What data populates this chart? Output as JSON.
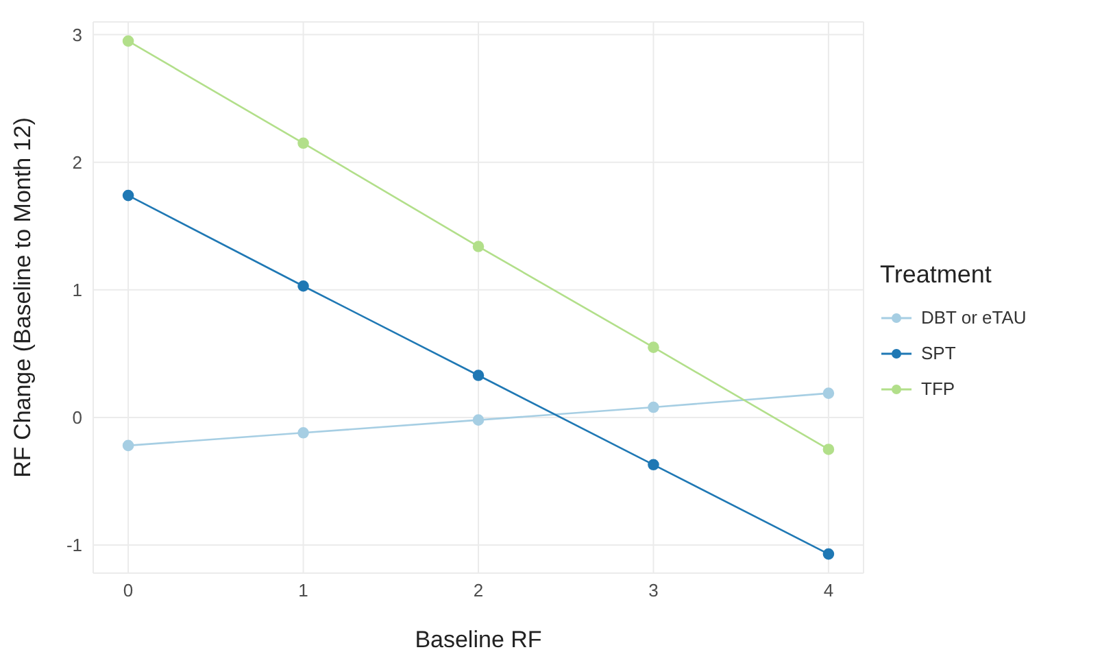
{
  "chart_data": {
    "type": "line",
    "xlabel": "Baseline RF",
    "ylabel": "RF Change (Baseline to Month 12)",
    "legend_title": "Treatment",
    "x": [
      0,
      1,
      2,
      3,
      4
    ],
    "series": [
      {
        "name": "DBT or eTAU",
        "color": "#a6cee3",
        "values": [
          -0.22,
          -0.12,
          -0.02,
          0.08,
          0.19
        ]
      },
      {
        "name": "SPT",
        "color": "#1f78b4",
        "values": [
          1.74,
          1.03,
          0.33,
          -0.37,
          -1.07
        ]
      },
      {
        "name": "TFP",
        "color": "#b2df8a",
        "values": [
          2.95,
          2.15,
          1.34,
          0.55,
          -0.25
        ]
      }
    ],
    "xlim": [
      -0.2,
      4.2
    ],
    "ylim": [
      -1.22,
      3.1
    ],
    "xticks": [
      0,
      1,
      2,
      3,
      4
    ],
    "yticks": [
      -1,
      0,
      1,
      2,
      3
    ],
    "grid": true,
    "legend": "right",
    "marker": "circle",
    "line_style": "solid"
  }
}
